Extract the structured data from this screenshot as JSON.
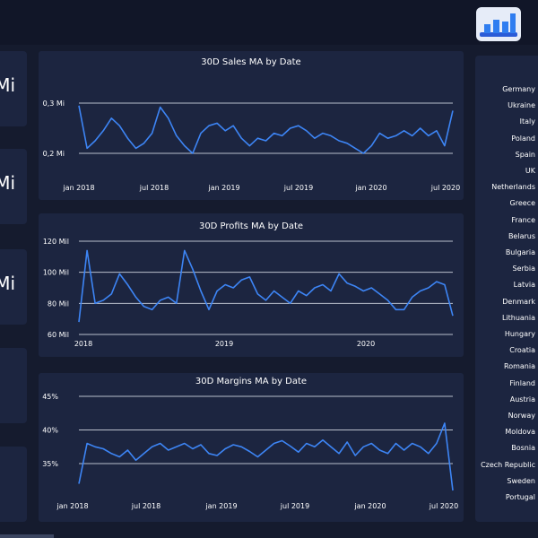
{
  "kpis": [
    {
      "value": "Mi"
    },
    {
      "value": "Mi"
    },
    {
      "value": "Mi"
    },
    {
      "value": ""
    },
    {
      "value": ""
    }
  ],
  "chart_data": [
    {
      "type": "line",
      "title": "30D Sales MA by Date",
      "color": "#3d85f5",
      "x_ticks": [
        "jan 2018",
        "jul 2018",
        "jan 2019",
        "jul 2019",
        "jan 2020",
        "jul 2020"
      ],
      "y_ticks": [
        "0,2 Mi",
        "0,3 Mi"
      ],
      "ylim": [
        0.2,
        0.3
      ],
      "x_range": [
        "2018-01",
        "2020-07"
      ],
      "grid": true,
      "series": [
        {
          "values": [
            0.295,
            0.21,
            0.225,
            0.245,
            0.27,
            0.255,
            0.23,
            0.21,
            0.22,
            0.24,
            0.292,
            0.27,
            0.235,
            0.215,
            0.2,
            0.24,
            0.255,
            0.26,
            0.245,
            0.255,
            0.23,
            0.215,
            0.23,
            0.225,
            0.24,
            0.235,
            0.25,
            0.255,
            0.245,
            0.23,
            0.24,
            0.235,
            0.225,
            0.22,
            0.21,
            0.2,
            0.215,
            0.24,
            0.23,
            0.235,
            0.245,
            0.235,
            0.25,
            0.235,
            0.245,
            0.215,
            0.285
          ]
        }
      ]
    },
    {
      "type": "line",
      "title": "30D Profits MA by Date",
      "color": "#3d85f5",
      "x_ticks": [
        "2018",
        "2019",
        "2020"
      ],
      "y_ticks": [
        "60 Mil",
        "80 Mil",
        "100 Mil",
        "120 Mil"
      ],
      "ylim": [
        60,
        120
      ],
      "x_range": [
        "2018-01",
        "2020-07"
      ],
      "grid": true,
      "series": [
        {
          "values": [
            68,
            114,
            80,
            82,
            86,
            99,
            92,
            84,
            78,
            76,
            82,
            84,
            80,
            114,
            102,
            88,
            76,
            88,
            92,
            90,
            95,
            97,
            86,
            82,
            88,
            84,
            80,
            88,
            85,
            90,
            92,
            88,
            99,
            93,
            91,
            88,
            90,
            86,
            82,
            76,
            76,
            84,
            88,
            90,
            94,
            92,
            72
          ]
        }
      ]
    },
    {
      "type": "line",
      "title": "30D Margins MA by Date",
      "color": "#3d85f5",
      "x_ticks": [
        "jan 2018",
        "jul 2018",
        "jan 2019",
        "jul 2019",
        "jan 2020",
        "jul 2020"
      ],
      "y_ticks": [
        "35%",
        "40%",
        "45%"
      ],
      "ylim": [
        32,
        46
      ],
      "x_range": [
        "2018-01",
        "2020-07"
      ],
      "grid": true,
      "series": [
        {
          "values": [
            32,
            38,
            37.5,
            37.2,
            36.5,
            36,
            37,
            35.5,
            36.5,
            37.5,
            38,
            37,
            37.5,
            38,
            37.2,
            37.8,
            36.5,
            36.2,
            37.2,
            37.8,
            37.5,
            36.8,
            36,
            37,
            38,
            38.4,
            37.6,
            36.7,
            38,
            37.5,
            38.5,
            37.5,
            36.5,
            38.2,
            36.2,
            37.5,
            38,
            37,
            36.5,
            38,
            37,
            38,
            37.5,
            36.5,
            38,
            41,
            31
          ]
        }
      ]
    }
  ],
  "countries": [
    "Germany",
    "Ukraine",
    "Italy",
    "Poland",
    "Spain",
    "UK",
    "Netherlands",
    "Greece",
    "France",
    "Belarus",
    "Bulgaria",
    "Serbia",
    "Latvia",
    "Denmark",
    "Lithuania",
    "Hungary",
    "Croatia",
    "Romania",
    "Finland",
    "Austria",
    "Norway",
    "Moldova",
    "Bosnia",
    "Czech Republic",
    "Sweden",
    "Portugal"
  ]
}
